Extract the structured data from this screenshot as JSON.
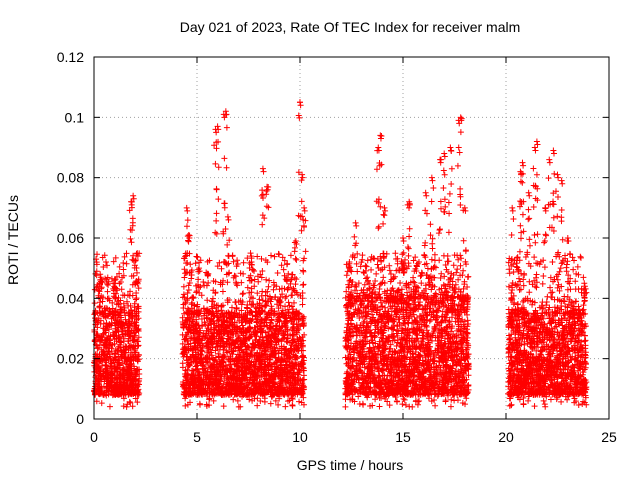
{
  "chart_data": {
    "type": "scatter",
    "title": "Day 021 of 2023, Rate Of TEC Index for receiver malm",
    "xlabel": "GPS time / hours",
    "ylabel": "ROTI / TECUs",
    "xlim": [
      0,
      25
    ],
    "ylim": [
      0,
      0.12
    ],
    "x_ticks": [
      0,
      5,
      10,
      15,
      20,
      25
    ],
    "y_ticks": [
      0,
      0.02,
      0.04,
      0.06,
      0.08,
      0.1,
      0.12
    ],
    "x_tick_labels": [
      "0",
      "5",
      "10",
      "15",
      "20",
      "25"
    ],
    "y_tick_labels": [
      "0",
      "0.02",
      "0.04",
      "0.06",
      "0.08",
      "0.1",
      "0.12"
    ],
    "grid": true,
    "marker": "+",
    "color": "#ff0000",
    "data_segments": [
      {
        "x_range": [
          0.0,
          2.2
        ],
        "typical_range": [
          0.008,
          0.035
        ],
        "peaks": [
          [
            0.1,
            0.053
          ],
          [
            0.3,
            0.048
          ],
          [
            1.0,
            0.046
          ],
          [
            1.8,
            0.072
          ],
          [
            1.9,
            0.074
          ],
          [
            2.1,
            0.055
          ]
        ]
      },
      {
        "x_range": [
          4.3,
          10.2
        ],
        "typical_range": [
          0.008,
          0.035
        ],
        "peaks": [
          [
            4.5,
            0.07
          ],
          [
            4.6,
            0.061
          ],
          [
            5.1,
            0.05
          ],
          [
            5.9,
            0.096
          ],
          [
            6.0,
            0.097
          ],
          [
            6.3,
            0.101
          ],
          [
            6.4,
            0.102
          ],
          [
            6.5,
            0.067
          ],
          [
            7.6,
            0.055
          ],
          [
            8.2,
            0.083
          ],
          [
            8.4,
            0.077
          ],
          [
            9.8,
            0.059
          ],
          [
            10.0,
            0.105
          ],
          [
            10.1,
            0.081
          ],
          [
            10.2,
            0.07
          ]
        ]
      },
      {
        "x_range": [
          12.2,
          18.2
        ],
        "typical_range": [
          0.008,
          0.04
        ],
        "peaks": [
          [
            12.7,
            0.065
          ],
          [
            13.8,
            0.09
          ],
          [
            13.9,
            0.094
          ],
          [
            14.1,
            0.07
          ],
          [
            15.0,
            0.06
          ],
          [
            15.3,
            0.072
          ],
          [
            16.1,
            0.075
          ],
          [
            16.4,
            0.08
          ],
          [
            16.8,
            0.086
          ],
          [
            17.0,
            0.088
          ],
          [
            17.3,
            0.09
          ],
          [
            17.7,
            0.099
          ],
          [
            17.8,
            0.1
          ],
          [
            18.0,
            0.07
          ]
        ]
      },
      {
        "x_range": [
          20.1,
          23.9
        ],
        "typical_range": [
          0.008,
          0.035
        ],
        "peaks": [
          [
            20.3,
            0.07
          ],
          [
            20.7,
            0.082
          ],
          [
            20.8,
            0.085
          ],
          [
            21.1,
            0.075
          ],
          [
            21.4,
            0.09
          ],
          [
            21.5,
            0.092
          ],
          [
            21.9,
            0.07
          ],
          [
            22.1,
            0.086
          ],
          [
            22.3,
            0.089
          ],
          [
            22.5,
            0.081
          ],
          [
            22.7,
            0.079
          ],
          [
            23.0,
            0.06
          ],
          [
            23.8,
            0.045
          ]
        ]
      }
    ]
  }
}
